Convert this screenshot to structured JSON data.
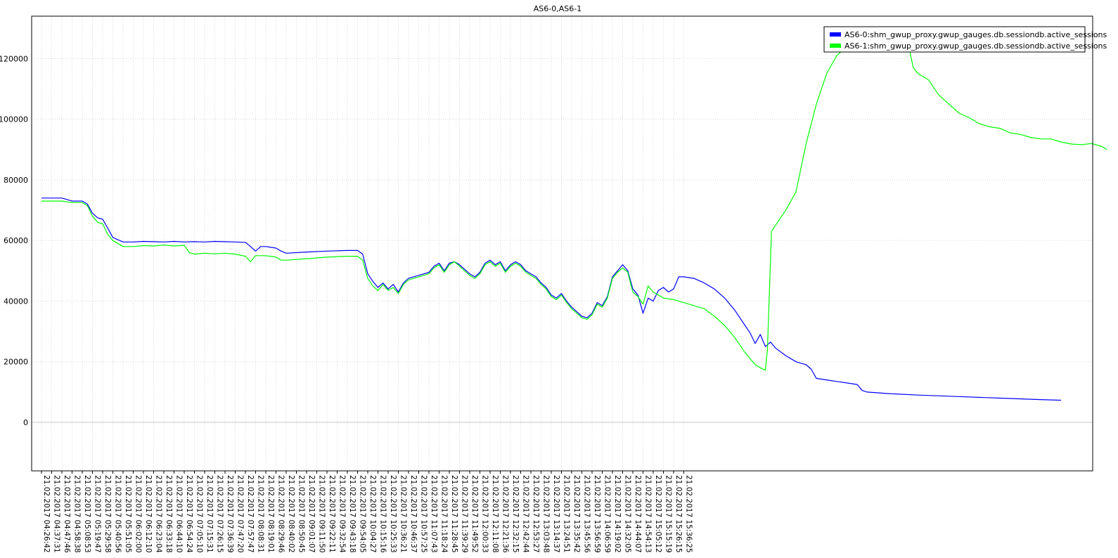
{
  "chart_data": {
    "type": "line",
    "title": "AS6-0,AS6-1",
    "xlabel": "",
    "ylabel": "",
    "ylim": [
      -16000,
      134000
    ],
    "yticks": [
      0,
      20000,
      40000,
      60000,
      80000,
      100000,
      120000
    ],
    "grid": true,
    "legend_position": "top-right",
    "x_tick_labels": [
      "21.02.2017 04:26:42",
      "21.02.2017 04:37:31",
      "21.02.2017 04:47:46",
      "21.02.2017 04:58:38",
      "21.02.2017 05:08:53",
      "21.02.2017 05:19:47",
      "21.02.2017 05:29:58",
      "21.02.2017 05:40:56",
      "21.02.2017 05:51:05",
      "21.02.2017 06:02:00",
      "21.02.2017 06:12:10",
      "21.02.2017 06:23:04",
      "21.02.2017 06:33:18",
      "21.02.2017 06:44:10",
      "21.02.2017 06:54:24",
      "21.02.2017 07:05:10",
      "21.02.2017 07:15:31",
      "21.02.2017 07:26:15",
      "21.02.2017 07:36:39",
      "21.02.2017 07:47:20",
      "21.02.2017 07:57:47",
      "21.02.2017 08:08:31",
      "21.02.2017 08:19:01",
      "21.02.2017 08:29:46",
      "21.02.2017 08:40:02",
      "21.02.2017 08:50:45",
      "21.02.2017 09:01:07",
      "21.02.2017 09:11:50",
      "21.02.2017 09:22:11",
      "21.02.2017 09:32:54",
      "21.02.2017 09:43:18",
      "21.02.2017 09:54:05",
      "21.02.2017 10:04:27",
      "21.02.2017 10:15:16",
      "21.02.2017 10:25:33",
      "21.02.2017 10:36:21",
      "21.02.2017 10:46:37",
      "21.02.2017 10:57:25",
      "21.02.2017 11:07:43",
      "21.02.2017 11:18:24",
      "21.02.2017 11:28:45",
      "21.02.2017 11:39:29",
      "21.02.2017 11:49:52",
      "21.02.2017 12:00:33",
      "21.02.2017 12:11:08",
      "21.02.2017 12:21:36",
      "21.02.2017 12:32:15",
      "21.02.2017 12:42:44",
      "21.02.2017 12:53:27",
      "21.02.2017 13:03:48",
      "21.02.2017 13:14:37",
      "21.02.2017 13:24:51",
      "21.02.2017 13:35:42",
      "21.02.2017 13:45:56",
      "21.02.2017 13:56:59",
      "21.02.2017 14:06:59",
      "21.02.2017 14:19:02",
      "21.02.2017 14:32:05",
      "21.02.2017 14:44:07",
      "21.02.2017 14:54:13",
      "21.02.2017 15:05:12",
      "21.02.2017 15:15:19",
      "21.02.2017 15:26:15",
      "21.02.2017 15:36:25"
    ],
    "series": [
      {
        "name": "AS6-0:shm_gwup_proxy.gwup_gauges.db.sessiondb.active_sessions",
        "color": "#0000ff",
        "points": [
          [
            0,
            74000
          ],
          [
            2,
            74000
          ],
          [
            3,
            73000
          ],
          [
            4,
            73000
          ],
          [
            4.5,
            72000
          ],
          [
            5,
            69000
          ],
          [
            5.5,
            67500
          ],
          [
            6,
            67000
          ],
          [
            6.5,
            64000
          ],
          [
            7,
            61000
          ],
          [
            8,
            59500
          ],
          [
            9,
            59500
          ],
          [
            10,
            59700
          ],
          [
            11,
            59600
          ],
          [
            12,
            59500
          ],
          [
            13,
            59700
          ],
          [
            14,
            59500
          ],
          [
            15,
            59600
          ],
          [
            16,
            59500
          ],
          [
            17,
            59700
          ],
          [
            18,
            59600
          ],
          [
            19,
            59500
          ],
          [
            20,
            59400
          ],
          [
            20.5,
            58000
          ],
          [
            21,
            56500
          ],
          [
            21.5,
            58000
          ],
          [
            22,
            58000
          ],
          [
            23,
            57500
          ],
          [
            23.5,
            56500
          ],
          [
            24,
            55800
          ],
          [
            26,
            56200
          ],
          [
            28,
            56500
          ],
          [
            30,
            56700
          ],
          [
            31,
            56700
          ],
          [
            31.5,
            55500
          ],
          [
            32,
            49000
          ],
          [
            32.5,
            46500
          ],
          [
            33,
            44500
          ],
          [
            33.5,
            46000
          ],
          [
            34,
            44000
          ],
          [
            34.5,
            45500
          ],
          [
            35,
            43000
          ],
          [
            35.5,
            46000
          ],
          [
            36,
            47500
          ],
          [
            37,
            48500
          ],
          [
            38,
            49500
          ],
          [
            38.5,
            51500
          ],
          [
            39,
            52500
          ],
          [
            39.5,
            50000
          ],
          [
            40,
            52500
          ],
          [
            40.5,
            53000
          ],
          [
            41,
            52000
          ],
          [
            41.5,
            50500
          ],
          [
            42,
            49000
          ],
          [
            42.5,
            48000
          ],
          [
            43,
            49500
          ],
          [
            43.5,
            52500
          ],
          [
            44,
            53500
          ],
          [
            44.5,
            52000
          ],
          [
            45,
            53000
          ],
          [
            45.5,
            50000
          ],
          [
            46,
            52000
          ],
          [
            46.5,
            53000
          ],
          [
            47,
            52000
          ],
          [
            47.5,
            50000
          ],
          [
            48,
            49000
          ],
          [
            48.5,
            48000
          ],
          [
            49,
            46000
          ],
          [
            49.5,
            44500
          ],
          [
            50,
            42000
          ],
          [
            50.5,
            41000
          ],
          [
            51,
            42500
          ],
          [
            51.5,
            40000
          ],
          [
            52,
            38000
          ],
          [
            52.5,
            36500
          ],
          [
            53,
            35000
          ],
          [
            53.5,
            34500
          ],
          [
            54,
            36000
          ],
          [
            54.5,
            39500
          ],
          [
            55,
            38500
          ],
          [
            55.5,
            41500
          ],
          [
            56,
            48000
          ],
          [
            56.5,
            50000
          ],
          [
            57,
            52000
          ],
          [
            57.5,
            50000
          ],
          [
            58,
            44000
          ],
          [
            58.5,
            42000
          ],
          [
            59,
            36000
          ],
          [
            59.5,
            41000
          ],
          [
            60,
            40000
          ],
          [
            60.5,
            43500
          ],
          [
            61,
            44500
          ],
          [
            61.5,
            43000
          ],
          [
            62,
            44000
          ],
          [
            62.5,
            48000
          ],
          [
            63,
            48000
          ],
          [
            64,
            47500
          ],
          [
            65,
            46000
          ],
          [
            66,
            44000
          ],
          [
            67,
            41000
          ],
          [
            68,
            37000
          ],
          [
            69,
            32000
          ],
          [
            69.5,
            29500
          ],
          [
            70,
            26000
          ],
          [
            70.5,
            29000
          ],
          [
            71,
            25000
          ],
          [
            71.5,
            26500
          ],
          [
            72,
            24500
          ],
          [
            73,
            22000
          ],
          [
            74,
            20000
          ],
          [
            75,
            19000
          ],
          [
            75.5,
            17500
          ],
          [
            76,
            14500
          ],
          [
            77,
            14000
          ],
          [
            78,
            13500
          ],
          [
            79,
            13000
          ],
          [
            80,
            12500
          ],
          [
            80.5,
            10500
          ],
          [
            81,
            10000
          ],
          [
            83,
            9500
          ],
          [
            86,
            9000
          ],
          [
            90,
            8500
          ],
          [
            94,
            8000
          ],
          [
            98,
            7500
          ],
          [
            100,
            7300
          ]
        ]
      },
      {
        "name": "AS6-1:shm_gwup_proxy.gwup_gauges.db.sessiondb.active_sessions",
        "color": "#00ff00",
        "points": [
          [
            0,
            73000
          ],
          [
            2,
            73000
          ],
          [
            3,
            72500
          ],
          [
            4,
            72500
          ],
          [
            4.5,
            71500
          ],
          [
            5,
            68000
          ],
          [
            5.5,
            66000
          ],
          [
            6,
            65500
          ],
          [
            6.5,
            62000
          ],
          [
            7,
            60000
          ],
          [
            8,
            58000
          ],
          [
            9,
            58000
          ],
          [
            10,
            58300
          ],
          [
            11,
            58200
          ],
          [
            12,
            58500
          ],
          [
            13,
            58200
          ],
          [
            14,
            58400
          ],
          [
            14.5,
            56000
          ],
          [
            15,
            55500
          ],
          [
            16,
            55800
          ],
          [
            17,
            55600
          ],
          [
            18,
            55800
          ],
          [
            19,
            55500
          ],
          [
            20,
            54800
          ],
          [
            20.5,
            53000
          ],
          [
            21,
            55000
          ],
          [
            22,
            55000
          ],
          [
            23,
            54500
          ],
          [
            23.5,
            53500
          ],
          [
            24,
            53500
          ],
          [
            26,
            54000
          ],
          [
            28,
            54500
          ],
          [
            30,
            54800
          ],
          [
            31,
            54800
          ],
          [
            31.5,
            53500
          ],
          [
            32,
            47500
          ],
          [
            32.5,
            45000
          ],
          [
            33,
            43500
          ],
          [
            33.5,
            45500
          ],
          [
            34,
            43500
          ],
          [
            34.5,
            44500
          ],
          [
            35,
            42500
          ],
          [
            35.5,
            45500
          ],
          [
            36,
            47000
          ],
          [
            37,
            48000
          ],
          [
            38,
            49000
          ],
          [
            38.5,
            51000
          ],
          [
            39,
            52000
          ],
          [
            39.5,
            49500
          ],
          [
            40,
            52000
          ],
          [
            40.5,
            53000
          ],
          [
            41,
            51500
          ],
          [
            41.5,
            50000
          ],
          [
            42,
            48500
          ],
          [
            42.5,
            47500
          ],
          [
            43,
            49000
          ],
          [
            43.5,
            52000
          ],
          [
            44,
            53000
          ],
          [
            44.5,
            51500
          ],
          [
            45,
            52500
          ],
          [
            45.5,
            49500
          ],
          [
            46,
            51500
          ],
          [
            46.5,
            52500
          ],
          [
            47,
            51500
          ],
          [
            47.5,
            49500
          ],
          [
            48,
            48500
          ],
          [
            48.5,
            47500
          ],
          [
            49,
            45500
          ],
          [
            49.5,
            44000
          ],
          [
            50,
            41500
          ],
          [
            50.5,
            40500
          ],
          [
            51,
            42000
          ],
          [
            51.5,
            39500
          ],
          [
            52,
            37500
          ],
          [
            52.5,
            36000
          ],
          [
            53,
            34500
          ],
          [
            53.5,
            34000
          ],
          [
            54,
            35500
          ],
          [
            54.5,
            39000
          ],
          [
            55,
            38000
          ],
          [
            55.5,
            41000
          ],
          [
            56,
            47500
          ],
          [
            56.5,
            49500
          ],
          [
            57,
            51000
          ],
          [
            57.5,
            49500
          ],
          [
            58,
            43000
          ],
          [
            58.5,
            41500
          ],
          [
            59,
            39000
          ],
          [
            59.5,
            45000
          ],
          [
            60,
            43000
          ],
          [
            60.5,
            42000
          ],
          [
            61,
            41000
          ],
          [
            62,
            40500
          ],
          [
            63,
            39500
          ],
          [
            64,
            38500
          ],
          [
            65,
            37500
          ],
          [
            66,
            35000
          ],
          [
            67,
            32000
          ],
          [
            68,
            28000
          ],
          [
            69,
            23000
          ],
          [
            69.5,
            21000
          ],
          [
            70,
            19000
          ],
          [
            70.5,
            18000
          ],
          [
            71,
            17200
          ],
          [
            71.2,
            24000
          ],
          [
            71.6,
            63000
          ],
          [
            72,
            65000
          ],
          [
            73,
            70000
          ],
          [
            74,
            76000
          ],
          [
            75,
            92000
          ],
          [
            76,
            105000
          ],
          [
            77,
            115000
          ],
          [
            78,
            121000
          ],
          [
            79,
            124000
          ],
          [
            80,
            126500
          ],
          [
            80.5,
            129500
          ],
          [
            81,
            129000
          ],
          [
            81.5,
            128000
          ],
          [
            82,
            127000
          ],
          [
            83,
            126800
          ],
          [
            84,
            126500
          ],
          [
            85,
            125000
          ],
          [
            85.5,
            117000
          ],
          [
            86,
            115000
          ],
          [
            87,
            113000
          ],
          [
            88,
            108000
          ],
          [
            89,
            105000
          ],
          [
            90,
            102000
          ],
          [
            91,
            100500
          ],
          [
            92,
            98500
          ],
          [
            93,
            97500
          ],
          [
            94,
            97000
          ],
          [
            95,
            95500
          ],
          [
            96,
            95000
          ],
          [
            97,
            94000
          ],
          [
            98,
            93500
          ],
          [
            99,
            93500
          ],
          [
            100,
            92500
          ],
          [
            101,
            91800
          ],
          [
            102,
            91600
          ],
          [
            103,
            92000
          ],
          [
            104,
            91000
          ],
          [
            104.5,
            90000
          ]
        ]
      }
    ]
  }
}
